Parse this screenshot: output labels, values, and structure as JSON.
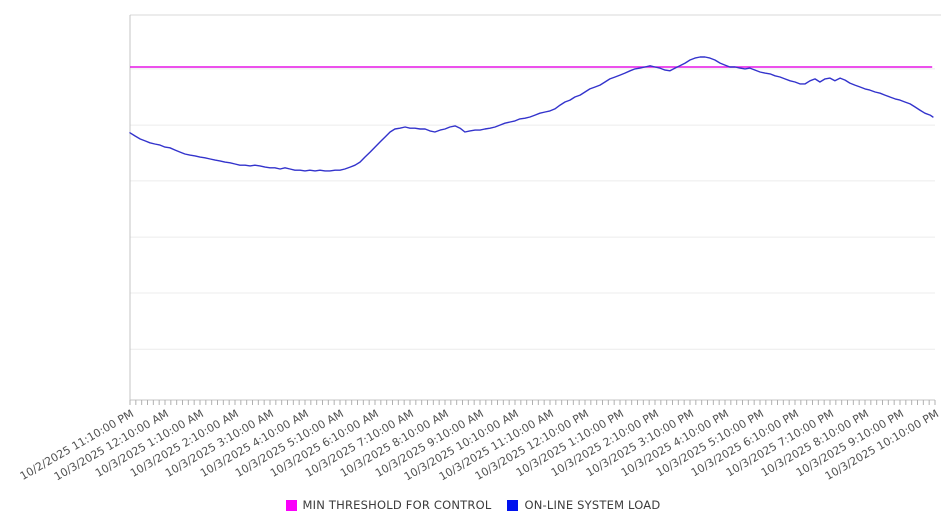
{
  "legend": {
    "items": [
      {
        "label": "MIN THRESHOLD FOR CONTROL",
        "color": "#fa00fa"
      },
      {
        "label": "ON-LINE SYSTEM LOAD",
        "color": "#0011ee"
      }
    ]
  },
  "colors": {
    "threshold_line": "#e516e5",
    "load_line": "#3333cc",
    "gridline": "#ececec",
    "axis": "#c4c4c4",
    "top_border": "#d9d9d9",
    "minor_tick": "#b0b0b0",
    "axis_label_text": "#515151"
  },
  "chart_data": {
    "type": "line",
    "title": "",
    "xlabel": "",
    "ylabel": "",
    "legend_position": "bottom",
    "grid": "horizontal",
    "y_axis_labels_visible": false,
    "ylim": [
      0,
      100
    ],
    "grid_values": [
      13.2,
      27.8,
      42.3,
      56.9,
      71.4,
      86.0
    ],
    "x_hours_span": 23,
    "x_minor_tick_minutes": 10,
    "x_labels": [
      "10/2/2025 11:10:00 PM",
      "10/3/2025 12:10:00 AM",
      "10/3/2025 1:10:00 AM",
      "10/3/2025 2:10:00 AM",
      "10/3/2025 3:10:00 AM",
      "10/3/2025 4:10:00 AM",
      "10/3/2025 5:10:00 AM",
      "10/3/2025 6:10:00 AM",
      "10/3/2025 7:10:00 AM",
      "10/3/2025 8:10:00 AM",
      "10/3/2025 9:10:00 AM",
      "10/3/2025 10:10:00 AM",
      "10/3/2025 11:10:00 AM",
      "10/3/2025 12:10:00 PM",
      "10/3/2025 1:10:00 PM",
      "10/3/2025 2:10:00 PM",
      "10/3/2025 3:10:00 PM",
      "10/3/2025 4:10:00 PM",
      "10/3/2025 5:10:00 PM",
      "10/3/2025 6:10:00 PM",
      "10/3/2025 7:10:00 PM",
      "10/3/2025 8:10:00 PM",
      "10/3/2025 9:10:00 PM",
      "10/3/2025 10:10:00 PM"
    ],
    "series": [
      {
        "name": "MIN THRESHOLD FOR CONTROL",
        "kind": "threshold",
        "color": "#e516e5",
        "value": 86.5,
        "x_end_hours": 22.92
      },
      {
        "name": "ON-LINE SYSTEM LOAD",
        "kind": "line",
        "color": "#3333cc",
        "points": [
          [
            0,
            69.4
          ],
          [
            0.14,
            68.6
          ],
          [
            0.29,
            67.8
          ],
          [
            0.43,
            67.3
          ],
          [
            0.57,
            66.8
          ],
          [
            0.71,
            66.5
          ],
          [
            0.86,
            66.2
          ],
          [
            1,
            65.7
          ],
          [
            1.14,
            65.5
          ],
          [
            1.29,
            64.9
          ],
          [
            1.43,
            64.4
          ],
          [
            1.57,
            63.9
          ],
          [
            1.71,
            63.6
          ],
          [
            1.86,
            63.4
          ],
          [
            2,
            63.1
          ],
          [
            2.14,
            62.9
          ],
          [
            2.29,
            62.6
          ],
          [
            2.43,
            62.3
          ],
          [
            2.57,
            62.1
          ],
          [
            2.71,
            61.8
          ],
          [
            2.86,
            61.6
          ],
          [
            3,
            61.3
          ],
          [
            3.14,
            61
          ],
          [
            3.29,
            61
          ],
          [
            3.43,
            60.8
          ],
          [
            3.57,
            61
          ],
          [
            3.71,
            60.8
          ],
          [
            3.86,
            60.5
          ],
          [
            4,
            60.3
          ],
          [
            4.14,
            60.3
          ],
          [
            4.29,
            60
          ],
          [
            4.43,
            60.3
          ],
          [
            4.57,
            60
          ],
          [
            4.71,
            59.7
          ],
          [
            4.86,
            59.7
          ],
          [
            5,
            59.5
          ],
          [
            5.14,
            59.7
          ],
          [
            5.29,
            59.5
          ],
          [
            5.43,
            59.7
          ],
          [
            5.57,
            59.5
          ],
          [
            5.71,
            59.5
          ],
          [
            5.86,
            59.7
          ],
          [
            6,
            59.7
          ],
          [
            6.14,
            60
          ],
          [
            6.29,
            60.5
          ],
          [
            6.43,
            61
          ],
          [
            6.57,
            61.8
          ],
          [
            6.71,
            63.1
          ],
          [
            6.86,
            64.4
          ],
          [
            7,
            65.7
          ],
          [
            7.14,
            67
          ],
          [
            7.29,
            68.3
          ],
          [
            7.43,
            69.6
          ],
          [
            7.57,
            70.4
          ],
          [
            7.71,
            70.6
          ],
          [
            7.86,
            70.9
          ],
          [
            8,
            70.6
          ],
          [
            8.14,
            70.6
          ],
          [
            8.29,
            70.4
          ],
          [
            8.43,
            70.4
          ],
          [
            8.57,
            69.9
          ],
          [
            8.71,
            69.6
          ],
          [
            8.86,
            70.1
          ],
          [
            9,
            70.4
          ],
          [
            9.14,
            70.9
          ],
          [
            9.29,
            71.2
          ],
          [
            9.43,
            70.6
          ],
          [
            9.57,
            69.6
          ],
          [
            9.71,
            69.9
          ],
          [
            9.86,
            70.1
          ],
          [
            10,
            70.1
          ],
          [
            10.14,
            70.4
          ],
          [
            10.29,
            70.6
          ],
          [
            10.43,
            70.9
          ],
          [
            10.57,
            71.4
          ],
          [
            10.71,
            71.9
          ],
          [
            10.86,
            72.2
          ],
          [
            11,
            72.5
          ],
          [
            11.14,
            73
          ],
          [
            11.29,
            73.2
          ],
          [
            11.43,
            73.5
          ],
          [
            11.57,
            74
          ],
          [
            11.71,
            74.5
          ],
          [
            11.86,
            74.8
          ],
          [
            12,
            75.1
          ],
          [
            12.14,
            75.6
          ],
          [
            12.29,
            76.6
          ],
          [
            12.43,
            77.4
          ],
          [
            12.57,
            77.9
          ],
          [
            12.71,
            78.7
          ],
          [
            12.86,
            79.2
          ],
          [
            13,
            80
          ],
          [
            13.14,
            80.8
          ],
          [
            13.29,
            81.3
          ],
          [
            13.43,
            81.8
          ],
          [
            13.57,
            82.6
          ],
          [
            13.71,
            83.4
          ],
          [
            13.86,
            83.9
          ],
          [
            14,
            84.4
          ],
          [
            14.14,
            84.9
          ],
          [
            14.29,
            85.5
          ],
          [
            14.43,
            86
          ],
          [
            14.57,
            86.2
          ],
          [
            14.71,
            86.5
          ],
          [
            14.86,
            86.8
          ],
          [
            15,
            86.5
          ],
          [
            15.14,
            86.2
          ],
          [
            15.29,
            85.7
          ],
          [
            15.43,
            85.5
          ],
          [
            15.57,
            86.2
          ],
          [
            15.71,
            86.8
          ],
          [
            15.86,
            87.5
          ],
          [
            16,
            88.3
          ],
          [
            16.14,
            88.8
          ],
          [
            16.29,
            89.1
          ],
          [
            16.43,
            89.1
          ],
          [
            16.57,
            88.8
          ],
          [
            16.71,
            88.3
          ],
          [
            16.86,
            87.5
          ],
          [
            17,
            87
          ],
          [
            17.14,
            86.5
          ],
          [
            17.29,
            86.5
          ],
          [
            17.43,
            86.2
          ],
          [
            17.57,
            86
          ],
          [
            17.71,
            86.2
          ],
          [
            17.86,
            85.7
          ],
          [
            18,
            85.2
          ],
          [
            18.14,
            84.9
          ],
          [
            18.29,
            84.7
          ],
          [
            18.43,
            84.2
          ],
          [
            18.57,
            83.9
          ],
          [
            18.71,
            83.4
          ],
          [
            18.86,
            82.9
          ],
          [
            19,
            82.6
          ],
          [
            19.14,
            82.1
          ],
          [
            19.29,
            82.1
          ],
          [
            19.43,
            82.9
          ],
          [
            19.57,
            83.4
          ],
          [
            19.71,
            82.6
          ],
          [
            19.86,
            83.4
          ],
          [
            20,
            83.6
          ],
          [
            20.14,
            82.9
          ],
          [
            20.29,
            83.6
          ],
          [
            20.43,
            83.1
          ],
          [
            20.57,
            82.3
          ],
          [
            20.71,
            81.8
          ],
          [
            20.86,
            81.3
          ],
          [
            21,
            80.8
          ],
          [
            21.14,
            80.5
          ],
          [
            21.29,
            80
          ],
          [
            21.43,
            79.7
          ],
          [
            21.57,
            79.2
          ],
          [
            21.71,
            78.7
          ],
          [
            21.86,
            78.2
          ],
          [
            22,
            77.9
          ],
          [
            22.14,
            77.4
          ],
          [
            22.29,
            76.9
          ],
          [
            22.43,
            76.1
          ],
          [
            22.57,
            75.3
          ],
          [
            22.71,
            74.5
          ],
          [
            22.86,
            74
          ],
          [
            22.94,
            73.5
          ]
        ]
      }
    ]
  }
}
